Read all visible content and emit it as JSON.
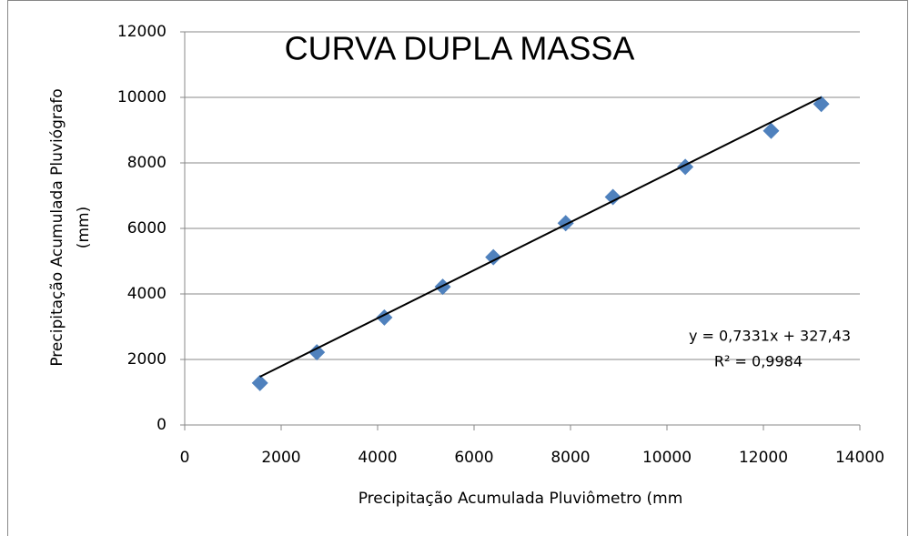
{
  "chart_data": {
    "type": "scatter",
    "title": "CURVA DUPLA MASSA",
    "xlabel": "Precipitação Acumulada  Pluviômetro (mm",
    "ylabel": [
      "Precipitação Acumulada  Pluviógrafo",
      "(mm)"
    ],
    "x": [
      1560,
      2740,
      4140,
      5350,
      6400,
      7900,
      8880,
      10380,
      12160,
      13200
    ],
    "series": [
      {
        "color": "#4f81bd",
        "values": [
          1280,
          2220,
          3280,
          4220,
          5120,
          6160,
          6960,
          7880,
          8980,
          9800
        ]
      }
    ],
    "trendline": {
      "slope": 0.7331,
      "intercept": 327.43,
      "color": "#000000",
      "equation": "y = 0,7331x + 327,43",
      "r2": "R² = 0,9984"
    },
    "xlim": [
      0,
      14000
    ],
    "xticks": [
      0,
      2000,
      4000,
      6000,
      8000,
      10000,
      12000,
      14000
    ],
    "ylim": [
      0,
      12000
    ],
    "yticks": [
      0,
      2000,
      4000,
      6000,
      8000,
      10000,
      12000
    ],
    "grid": true
  }
}
